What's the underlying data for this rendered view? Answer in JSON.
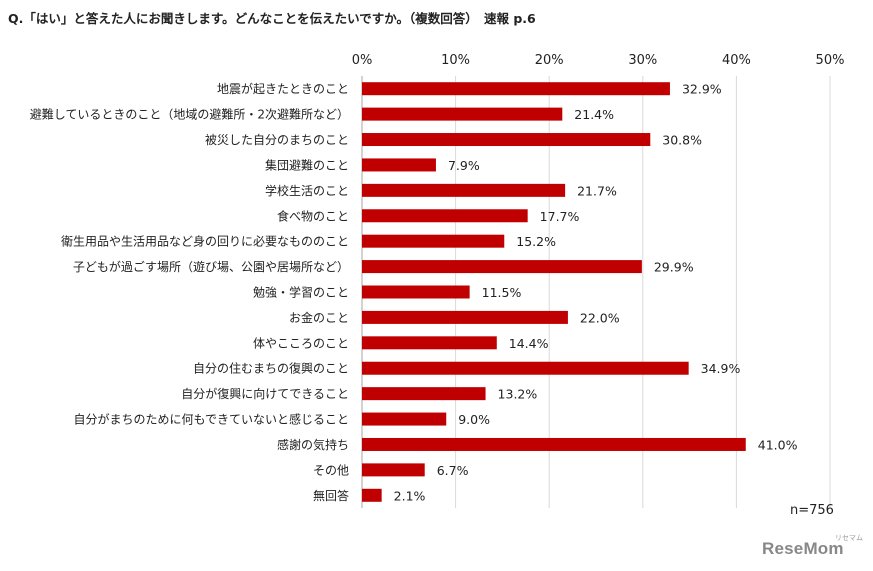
{
  "title": "Q.「はい」と答えた人にお聞きします。どんなことを伝えたいですか。（複数回答）　速報 p.6",
  "note": "n=756",
  "watermark": "ReseMom",
  "watermark_sub": "リセマム",
  "colors": {
    "bar": "#C00000",
    "grid": "#D9D9D9",
    "axis": "#A6A6A6"
  },
  "chart_data": {
    "type": "bar",
    "orientation": "horizontal",
    "xlim": [
      0,
      50
    ],
    "ticks": [
      0,
      10,
      20,
      30,
      40,
      50
    ],
    "tick_labels": [
      "0%",
      "10%",
      "20%",
      "30%",
      "40%",
      "50%"
    ],
    "grid": true,
    "categories": [
      "地震が起きたときのこと",
      "避難しているときのこと（地域の避難所・2次避難所など）",
      "被災した自分のまちのこと",
      "集団避難のこと",
      "学校生活のこと",
      "食べ物のこと",
      "衛生用品や生活用品など身の回りに必要なもののこと",
      "子どもが過ごす場所（遊び場、公園や居場所など）",
      "勉強・学習のこと",
      "お金のこと",
      "体やこころのこと",
      "自分の住むまちの復興のこと",
      "自分が復興に向けてできること",
      "自分がまちのために何もできていないと感じること",
      "感謝の気持ち",
      "その他",
      "無回答"
    ],
    "values": [
      32.9,
      21.4,
      30.8,
      7.9,
      21.7,
      17.7,
      15.2,
      29.9,
      11.5,
      22.0,
      14.4,
      34.9,
      13.2,
      9.0,
      41.0,
      6.7,
      2.1
    ],
    "value_labels": [
      "32.9%",
      "21.4%",
      "30.8%",
      "7.9%",
      "21.7%",
      "17.7%",
      "15.2%",
      "29.9%",
      "11.5%",
      "22.0%",
      "14.4%",
      "34.9%",
      "13.2%",
      "9.0%",
      "41.0%",
      "6.7%",
      "2.1%"
    ]
  }
}
